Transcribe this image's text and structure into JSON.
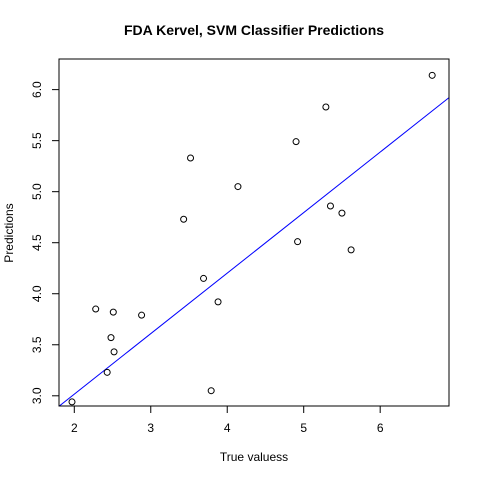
{
  "chart_data": {
    "type": "scatter",
    "title": "FDA Kervel, SVM Classifier Predictions",
    "xlabel": "True valuess",
    "ylabel": "Predictions",
    "xlim": [
      1.8,
      6.9
    ],
    "ylim": [
      2.9,
      6.3
    ],
    "x_ticks": [
      {
        "value": 2,
        "label": "2"
      },
      {
        "value": 3,
        "label": "3"
      },
      {
        "value": 4,
        "label": "4"
      },
      {
        "value": 5,
        "label": "5"
      },
      {
        "value": 6,
        "label": "6"
      }
    ],
    "y_ticks": [
      {
        "value": 3.0,
        "label": "3.0"
      },
      {
        "value": 3.5,
        "label": "3.5"
      },
      {
        "value": 4.0,
        "label": "4.0"
      },
      {
        "value": 4.5,
        "label": "4.5"
      },
      {
        "value": 5.0,
        "label": "5.0"
      },
      {
        "value": 5.5,
        "label": "5.5"
      },
      {
        "value": 6.0,
        "label": "6.0"
      }
    ],
    "grid": false,
    "points": [
      {
        "x": 1.97,
        "y": 2.94
      },
      {
        "x": 2.28,
        "y": 3.85
      },
      {
        "x": 2.43,
        "y": 3.23
      },
      {
        "x": 2.48,
        "y": 3.57
      },
      {
        "x": 2.51,
        "y": 3.82
      },
      {
        "x": 2.52,
        "y": 3.43
      },
      {
        "x": 2.88,
        "y": 3.79
      },
      {
        "x": 3.43,
        "y": 4.73
      },
      {
        "x": 3.52,
        "y": 5.33
      },
      {
        "x": 3.69,
        "y": 4.15
      },
      {
        "x": 3.79,
        "y": 3.05
      },
      {
        "x": 3.88,
        "y": 3.92
      },
      {
        "x": 4.14,
        "y": 5.05
      },
      {
        "x": 4.9,
        "y": 5.49
      },
      {
        "x": 4.92,
        "y": 4.51
      },
      {
        "x": 5.29,
        "y": 5.83
      },
      {
        "x": 5.35,
        "y": 4.86
      },
      {
        "x": 5.5,
        "y": 4.79
      },
      {
        "x": 5.62,
        "y": 4.43
      },
      {
        "x": 6.68,
        "y": 6.14
      }
    ],
    "point_color": "#000000",
    "fit_line": {
      "intercept": 1.83,
      "slope": 0.593,
      "color": "#0000ff"
    }
  }
}
